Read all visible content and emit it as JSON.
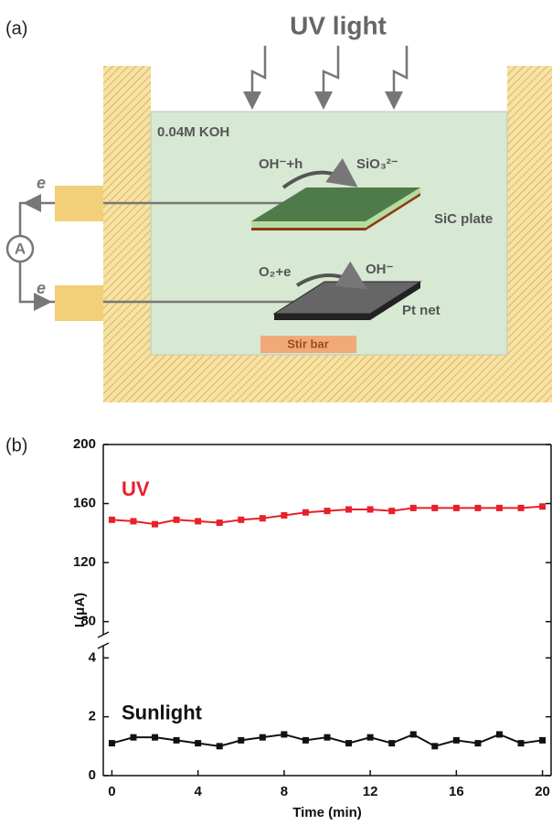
{
  "diagram": {
    "panel_label": "(a)",
    "light": "UV light",
    "solution": "0.04M KOH",
    "anode_reaction": "OH⁻+h",
    "anode_product": "SiO₃²⁻",
    "anode": "SiC plate",
    "cathode_reaction": "O₂+e",
    "cathode_product": "OH⁻",
    "cathode": "Pt net",
    "stirrer": "Stir bar",
    "electron_top": "e",
    "electron_bottom": "e",
    "ammeter": "A"
  },
  "chart_panel_label": "(b)",
  "chart_data": [
    {
      "type": "line",
      "x": [
        0,
        1,
        2,
        3,
        4,
        5,
        6,
        7,
        8,
        9,
        10,
        11,
        12,
        13,
        14,
        15,
        16,
        17,
        18,
        19,
        20
      ],
      "xlim": [
        -0.4,
        20.4
      ],
      "ylim": [
        68,
        200
      ],
      "yticks": [
        80,
        120,
        160,
        200
      ],
      "series": [
        {
          "name": "UV",
          "color": "#e8202a",
          "values": [
            149,
            148,
            146,
            149,
            148,
            147,
            149,
            150,
            152,
            154,
            155,
            156,
            156,
            155,
            157,
            157,
            157,
            157,
            157,
            157,
            158
          ]
        }
      ]
    },
    {
      "type": "line",
      "x": [
        0,
        1,
        2,
        3,
        4,
        5,
        6,
        7,
        8,
        9,
        10,
        11,
        12,
        13,
        14,
        15,
        16,
        17,
        18,
        19,
        20
      ],
      "xlim": [
        -0.4,
        20.4
      ],
      "xticks": [
        0,
        4,
        8,
        12,
        16,
        20
      ],
      "xlabel": "Time (min)",
      "ylabel": "I (μA)",
      "ylim": [
        0,
        4.6
      ],
      "yticks": [
        0,
        2,
        4
      ],
      "series": [
        {
          "name": "Sunlight",
          "color": "#111111",
          "values": [
            1.1,
            1.3,
            1.3,
            1.2,
            1.1,
            1.0,
            1.2,
            1.3,
            1.4,
            1.2,
            1.3,
            1.1,
            1.3,
            1.1,
            1.4,
            1.0,
            1.2,
            1.1,
            1.4,
            1.1,
            1.2
          ]
        }
      ]
    }
  ]
}
